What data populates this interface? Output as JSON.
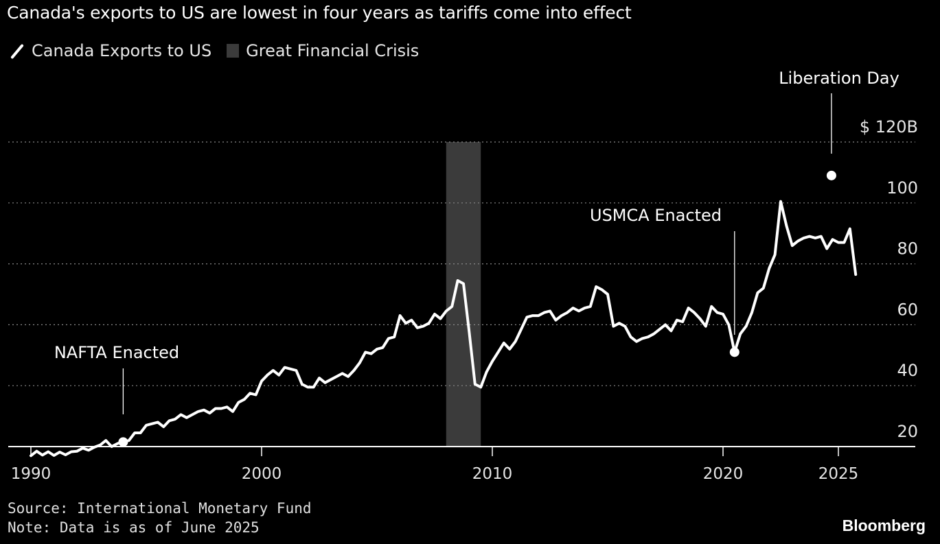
{
  "title": "Canada's exports to US are lowest in four years as tariffs come into effect",
  "legend": [
    {
      "label": "Canada Exports to US",
      "swatch": "line",
      "color": "#ffffff"
    },
    {
      "label": "Great Financial Crisis",
      "swatch": "box",
      "color": "#3b3b3b"
    }
  ],
  "footer": {
    "source": "Source: International Monetary Fund",
    "note": "Note: Data is as of June 2025",
    "brand": "Bloomberg"
  },
  "chart_data": {
    "type": "line",
    "title": "Canada's exports to US are lowest in four years as tariffs come into effect",
    "unit_prefix": "$",
    "unit_suffix": "B",
    "xlim": [
      1990,
      2025.8
    ],
    "ylim": [
      20,
      120
    ],
    "x_ticks": [
      1990,
      2000,
      2010,
      2020,
      2025
    ],
    "y_ticks": [
      20,
      40,
      60,
      80,
      100,
      120
    ],
    "y_tick_labels": [
      "20",
      "40",
      "60",
      "80",
      "100",
      "$ 120B"
    ],
    "grid": "horizontal-dotted",
    "shaded_region": {
      "label": "Great Financial Crisis",
      "x0": 2008.0,
      "x1": 2009.5
    },
    "annotations": [
      {
        "label": "NAFTA Enacted",
        "x": 1994.0,
        "y": 21.5,
        "marker": true
      },
      {
        "label": "USMCA Enacted",
        "x": 2020.5,
        "y": 70,
        "marker": false
      },
      {
        "label": "Liberation Day",
        "x": 2024.7,
        "y": 109,
        "marker": true
      },
      {
        "label": "",
        "x": 2020.5,
        "y": 51,
        "marker": true
      }
    ],
    "series": [
      {
        "name": "Canada Exports to US",
        "color": "#ffffff",
        "points": [
          [
            1990.0,
            17.0
          ],
          [
            1990.25,
            18.5
          ],
          [
            1990.5,
            17.2
          ],
          [
            1990.75,
            18.3
          ],
          [
            1991.0,
            17.1
          ],
          [
            1991.25,
            18.2
          ],
          [
            1991.5,
            17.3
          ],
          [
            1991.75,
            18.3
          ],
          [
            1992.0,
            18.5
          ],
          [
            1992.25,
            19.5
          ],
          [
            1992.5,
            18.8
          ],
          [
            1992.75,
            19.8
          ],
          [
            1993.0,
            20.5
          ],
          [
            1993.25,
            22.0
          ],
          [
            1993.5,
            20.0
          ],
          [
            1993.75,
            21.0
          ],
          [
            1994.0,
            21.5
          ],
          [
            1994.25,
            22.0
          ],
          [
            1994.5,
            24.5
          ],
          [
            1994.75,
            24.5
          ],
          [
            1995.0,
            27.0
          ],
          [
            1995.25,
            27.5
          ],
          [
            1995.5,
            28.0
          ],
          [
            1995.75,
            26.5
          ],
          [
            1996.0,
            28.5
          ],
          [
            1996.25,
            29.0
          ],
          [
            1996.5,
            30.5
          ],
          [
            1996.75,
            29.5
          ],
          [
            1997.0,
            30.5
          ],
          [
            1997.25,
            31.5
          ],
          [
            1997.5,
            32.0
          ],
          [
            1997.75,
            31.0
          ],
          [
            1998.0,
            32.5
          ],
          [
            1998.25,
            32.5
          ],
          [
            1998.5,
            33.0
          ],
          [
            1998.75,
            31.5
          ],
          [
            1999.0,
            34.5
          ],
          [
            1999.25,
            35.5
          ],
          [
            1999.5,
            37.5
          ],
          [
            1999.75,
            37.0
          ],
          [
            2000.0,
            41.5
          ],
          [
            2000.25,
            43.5
          ],
          [
            2000.5,
            45.0
          ],
          [
            2000.75,
            43.5
          ],
          [
            2001.0,
            46.0
          ],
          [
            2001.25,
            45.5
          ],
          [
            2001.5,
            45.0
          ],
          [
            2001.75,
            40.5
          ],
          [
            2002.0,
            39.5
          ],
          [
            2002.25,
            39.5
          ],
          [
            2002.5,
            42.5
          ],
          [
            2002.75,
            41.0
          ],
          [
            2003.0,
            42.0
          ],
          [
            2003.25,
            43.0
          ],
          [
            2003.5,
            44.0
          ],
          [
            2003.75,
            43.0
          ],
          [
            2004.0,
            45.0
          ],
          [
            2004.25,
            47.5
          ],
          [
            2004.5,
            51.0
          ],
          [
            2004.75,
            50.5
          ],
          [
            2005.0,
            52.0
          ],
          [
            2005.25,
            52.5
          ],
          [
            2005.5,
            55.5
          ],
          [
            2005.75,
            56.0
          ],
          [
            2006.0,
            63.0
          ],
          [
            2006.25,
            60.5
          ],
          [
            2006.5,
            61.5
          ],
          [
            2006.75,
            59.0
          ],
          [
            2007.0,
            59.5
          ],
          [
            2007.25,
            60.5
          ],
          [
            2007.5,
            63.5
          ],
          [
            2007.75,
            62.0
          ],
          [
            2008.0,
            64.5
          ],
          [
            2008.25,
            66.0
          ],
          [
            2008.5,
            74.5
          ],
          [
            2008.75,
            73.5
          ],
          [
            2009.0,
            57.5
          ],
          [
            2009.25,
            40.5
          ],
          [
            2009.5,
            39.5
          ],
          [
            2009.75,
            44.5
          ],
          [
            2010.0,
            48.0
          ],
          [
            2010.25,
            51.0
          ],
          [
            2010.5,
            54.0
          ],
          [
            2010.75,
            52.0
          ],
          [
            2011.0,
            54.5
          ],
          [
            2011.25,
            58.5
          ],
          [
            2011.5,
            62.5
          ],
          [
            2011.75,
            63.0
          ],
          [
            2012.0,
            63.0
          ],
          [
            2012.25,
            64.0
          ],
          [
            2012.5,
            64.5
          ],
          [
            2012.75,
            61.5
          ],
          [
            2013.0,
            63.0
          ],
          [
            2013.25,
            64.0
          ],
          [
            2013.5,
            65.5
          ],
          [
            2013.75,
            64.5
          ],
          [
            2014.0,
            65.5
          ],
          [
            2014.25,
            66.0
          ],
          [
            2014.5,
            72.5
          ],
          [
            2014.75,
            71.5
          ],
          [
            2015.0,
            70.0
          ],
          [
            2015.25,
            59.5
          ],
          [
            2015.5,
            60.5
          ],
          [
            2015.75,
            59.5
          ],
          [
            2016.0,
            56.0
          ],
          [
            2016.25,
            54.5
          ],
          [
            2016.5,
            55.5
          ],
          [
            2016.75,
            56.0
          ],
          [
            2017.0,
            57.0
          ],
          [
            2017.25,
            58.5
          ],
          [
            2017.5,
            60.0
          ],
          [
            2017.75,
            58.0
          ],
          [
            2018.0,
            61.5
          ],
          [
            2018.25,
            61.0
          ],
          [
            2018.5,
            65.5
          ],
          [
            2018.75,
            64.0
          ],
          [
            2019.0,
            62.0
          ],
          [
            2019.25,
            59.5
          ],
          [
            2019.5,
            66.0
          ],
          [
            2019.75,
            64.0
          ],
          [
            2020.0,
            63.5
          ],
          [
            2020.25,
            60.0
          ],
          [
            2020.5,
            51.0
          ],
          [
            2020.75,
            57.0
          ],
          [
            2021.0,
            59.5
          ],
          [
            2021.25,
            64.0
          ],
          [
            2021.5,
            70.5
          ],
          [
            2021.75,
            72.0
          ],
          [
            2022.0,
            78.5
          ],
          [
            2022.25,
            83.0
          ],
          [
            2022.5,
            100.5
          ],
          [
            2022.75,
            92.5
          ],
          [
            2023.0,
            86.0
          ],
          [
            2023.25,
            87.5
          ],
          [
            2023.5,
            88.5
          ],
          [
            2023.75,
            89.0
          ],
          [
            2024.0,
            88.5
          ],
          [
            2024.25,
            89.0
          ],
          [
            2024.5,
            85.0
          ],
          [
            2024.75,
            88.0
          ],
          [
            2025.0,
            87.0
          ],
          [
            2025.25,
            87.0
          ],
          [
            2025.5,
            91.5
          ],
          [
            2025.75,
            76.5
          ]
        ]
      }
    ]
  }
}
